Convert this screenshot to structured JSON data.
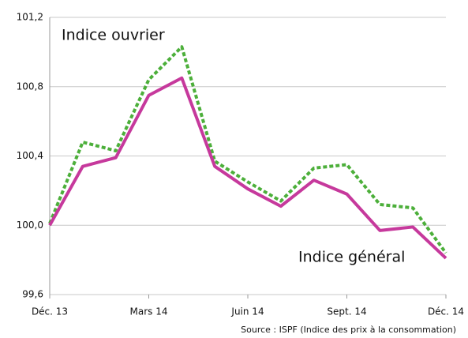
{
  "chart_data": {
    "type": "line",
    "categories": [
      "Déc. 13",
      null,
      null,
      "Mars 14",
      null,
      null,
      "Juin 14",
      null,
      null,
      "Sept. 14",
      null,
      null,
      "Déc. 14"
    ],
    "series": [
      {
        "name": "Indice ouvrier",
        "color": "#4caf3a",
        "dashed": true,
        "values": [
          100.01,
          100.48,
          100.43,
          100.84,
          101.03,
          100.37,
          100.25,
          100.14,
          100.33,
          100.35,
          100.12,
          100.1,
          99.84
        ]
      },
      {
        "name": "Indice général",
        "color": "#c6399c",
        "dashed": false,
        "values": [
          100.0,
          100.34,
          100.39,
          100.75,
          100.85,
          100.34,
          100.21,
          100.11,
          100.26,
          100.18,
          99.97,
          99.99,
          99.81
        ]
      }
    ],
    "ylim": [
      99.6,
      101.2
    ],
    "yticks": [
      {
        "value": 99.6,
        "label": "99,6"
      },
      {
        "value": 100.0,
        "label": "100,0"
      },
      {
        "value": 100.4,
        "label": "100,4"
      },
      {
        "value": 100.8,
        "label": "100,8"
      },
      {
        "value": 101.2,
        "label": "101,2"
      }
    ],
    "grid": true,
    "source": "Source : ISPF (Indice des prix à la consommation)"
  }
}
